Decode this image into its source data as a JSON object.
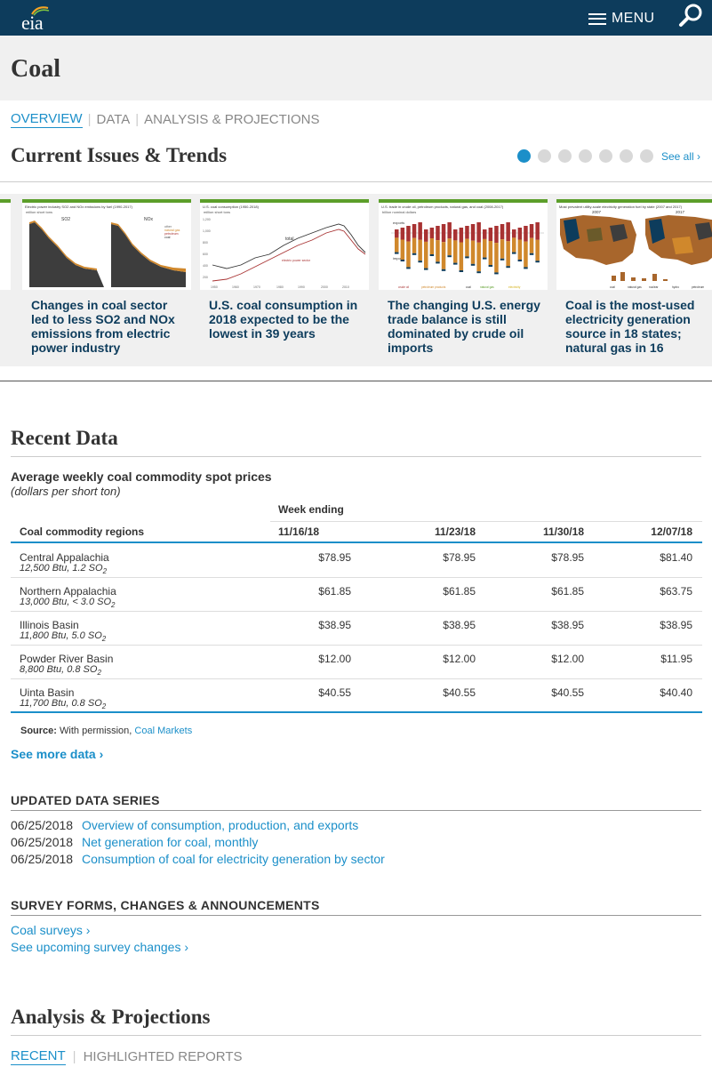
{
  "header": {
    "logo_text": "eia",
    "menu_label": "MENU"
  },
  "page": {
    "title": "Coal"
  },
  "subnav": {
    "items": [
      {
        "label": "OVERVIEW",
        "active": true
      },
      {
        "label": "DATA",
        "active": false
      },
      {
        "label": "ANALYSIS & PROJECTIONS",
        "active": false
      }
    ]
  },
  "trends": {
    "title": "Current Issues & Trends",
    "see_all": "See all ›",
    "dot_count": 7,
    "active_dot": 0,
    "cards": [
      {
        "caption": "Changes in coal sector led to less SO2 and NOx emissions from electric power industry",
        "thumb_title": "Electric power industry SO2 and NOx emissions by fuel (1990-2017)",
        "thumb_unit": "million short tons",
        "labels": [
          "SO2",
          "NOx"
        ],
        "legend": [
          "other",
          "natural gas",
          "petroleum",
          "coal"
        ]
      },
      {
        "caption": "U.S. coal consumption in 2018 expected to be the lowest in 39 years",
        "thumb_title": "U.S. coal consumption (1950-2018)",
        "thumb_unit": "million short tons",
        "labels": [
          "total",
          "electric power sector"
        ],
        "yticks": [
          "1,200",
          "1,000",
          "800",
          "600",
          "400",
          "200",
          "0"
        ],
        "xticks": [
          "1950",
          "1960",
          "1970",
          "1980",
          "1990",
          "2000",
          "2010"
        ]
      },
      {
        "caption": "The changing U.S. energy trade balance is still dominated by crude oil imports",
        "thumb_title": "U.S. trade in crude oil, petroleum products, natural gas, and coal (2008-2017)",
        "thumb_unit": "billion nominal dollars",
        "labels": [
          "exports",
          "imports"
        ],
        "legend": [
          "crude oil",
          "petroleum products",
          "coal",
          "natural gas",
          "electricity"
        ]
      },
      {
        "caption": "Coal is the most-used electricity generation source in 18 states; natural gas in 16",
        "thumb_title": "Most prevalent utility-scale electricity generation fuel by state (2007 and 2017)",
        "labels": [
          "2007",
          "2017"
        ],
        "legend": [
          "coal",
          "natural gas",
          "nuclear",
          "hydro",
          "petroleum"
        ]
      }
    ]
  },
  "recent_data": {
    "title": "Recent Data",
    "table_title": "Average weekly coal commodity spot prices",
    "table_subtitle": "(dollars per short ton)",
    "week_ending_label": "Week ending",
    "region_header": "Coal commodity regions",
    "weeks": [
      "11/16/18",
      "11/23/18",
      "11/30/18",
      "12/07/18"
    ],
    "rows": [
      {
        "name": "Central Appalachia",
        "spec": "12,500 Btu, 1.2 SO",
        "values": [
          "$78.95",
          "$78.95",
          "$78.95",
          "$81.40"
        ]
      },
      {
        "name": "Northern Appalachia",
        "spec": "13,000 Btu, < 3.0 SO",
        "values": [
          "$61.85",
          "$61.85",
          "$61.85",
          "$63.75"
        ]
      },
      {
        "name": "Illinois Basin",
        "spec": "11,800 Btu, 5.0 SO",
        "values": [
          "$38.95",
          "$38.95",
          "$38.95",
          "$38.95"
        ]
      },
      {
        "name": "Powder River Basin",
        "spec": "8,800 Btu, 0.8 SO",
        "values": [
          "$12.00",
          "$12.00",
          "$12.00",
          "$11.95"
        ]
      },
      {
        "name": "Uinta Basin",
        "spec": "11,700 Btu, 0.8 SO",
        "values": [
          "$40.55",
          "$40.55",
          "$40.55",
          "$40.40"
        ]
      }
    ],
    "subscript": "2",
    "source_label": "Source:",
    "source_text": "With permission,",
    "source_link": "Coal Markets",
    "see_more": "See more data ›"
  },
  "updated_series": {
    "title": "UPDATED DATA SERIES",
    "items": [
      {
        "date": "06/25/2018",
        "label": "Overview of consumption, production, and exports"
      },
      {
        "date": "06/25/2018",
        "label": "Net generation for coal, monthly"
      },
      {
        "date": "06/25/2018",
        "label": "Consumption of coal for electricity generation by sector"
      }
    ]
  },
  "surveys": {
    "title": "SURVEY FORMS, CHANGES & ANNOUNCEMENTS",
    "links": [
      "Coal surveys ›",
      "See upcoming survey changes ›"
    ]
  },
  "analysis": {
    "title": "Analysis & Projections",
    "tabs": [
      {
        "label": "RECENT",
        "active": true
      },
      {
        "label": "HIGHLIGHTED REPORTS",
        "active": false
      }
    ]
  },
  "colors": {
    "header_bg": "#0d3c5c",
    "accent": "#1b8fc9",
    "card_border": "#5c9e2a",
    "coal": "#3d3d3d",
    "natural_gas": "#d0882c",
    "petroleum": "#a83232"
  }
}
